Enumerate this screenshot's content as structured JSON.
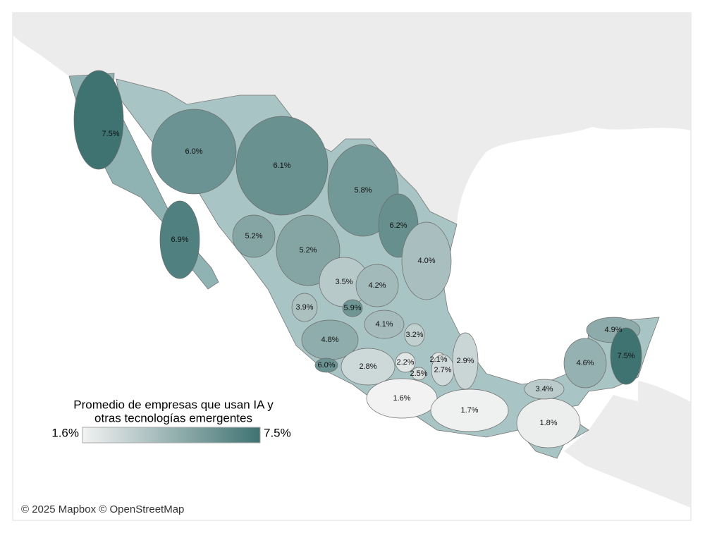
{
  "chart_data": {
    "type": "choropleth",
    "values": [
      7.5,
      6.9,
      6.0,
      6.1,
      5.8,
      6.2,
      4.0,
      5.2,
      5.2,
      3.5,
      4.2,
      3.9,
      5.9,
      4.1,
      3.2,
      4.8,
      6.0,
      2.8,
      2.2,
      2.1,
      2.5,
      2.7,
      2.9,
      1.6,
      1.7,
      1.8,
      3.4,
      4.6,
      4.9,
      7.5
    ],
    "value_labels": [
      "7.5%",
      "6.9%",
      "6.0%",
      "6.1%",
      "5.8%",
      "6.2%",
      "4.0%",
      "5.2%",
      "5.2%",
      "3.5%",
      "4.2%",
      "3.9%",
      "5.9%",
      "4.1%",
      "3.2%",
      "4.8%",
      "6.0%",
      "2.8%",
      "2.2%",
      "2.1%",
      "2.5%",
      "2.7%",
      "2.9%",
      "1.6%",
      "1.7%",
      "1.8%",
      "3.4%",
      "4.6%",
      "4.9%",
      "7.5%"
    ],
    "legend": {
      "title": [
        "Promedio de empresas que usan IA y",
        "otras tecnologías emergentes"
      ],
      "range": [
        {
          "value": 1.6,
          "label": "1.6%"
        },
        {
          "value": 7.5,
          "label": "7.5%"
        }
      ],
      "colors": [
        "#f2f2f2",
        "#3e7372"
      ]
    },
    "attribution": "© 2025 Mapbox © OpenStreetMap"
  }
}
